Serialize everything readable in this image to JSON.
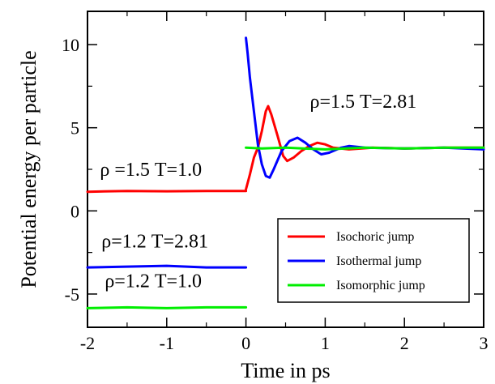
{
  "chart_data": {
    "type": "line",
    "title": "",
    "xlabel": "Time in ps",
    "ylabel": "Potential energy per particle",
    "xlim": [
      -2,
      3
    ],
    "ylim": [
      -7,
      12
    ],
    "x_ticks": [
      -2,
      -1,
      0,
      1,
      2,
      3
    ],
    "x_tick_labels": [
      "-2",
      "-1",
      "0",
      "1",
      "2",
      "3"
    ],
    "y_ticks": [
      -5,
      0,
      5,
      10
    ],
    "y_tick_labels": [
      "-5",
      "0",
      "5",
      "10"
    ],
    "grid": false,
    "legend_position": "bottom-right",
    "series": [
      {
        "name": "Isochoric jump",
        "color": "#ff0000",
        "segments": [
          [
            [
              -2,
              1.15
            ],
            [
              -1.5,
              1.2
            ],
            [
              -1.0,
              1.18
            ],
            [
              -0.5,
              1.2
            ],
            [
              0,
              1.2
            ]
          ],
          [
            [
              0,
              1.3
            ],
            [
              0.05,
              2.2
            ],
            [
              0.1,
              3.2
            ],
            [
              0.15,
              3.8
            ],
            [
              0.2,
              4.8
            ],
            [
              0.25,
              6.0
            ],
            [
              0.28,
              6.3
            ],
            [
              0.32,
              5.8
            ],
            [
              0.4,
              4.5
            ],
            [
              0.47,
              3.3
            ],
            [
              0.52,
              3.0
            ],
            [
              0.6,
              3.2
            ],
            [
              0.7,
              3.6
            ],
            [
              0.8,
              3.9
            ],
            [
              0.9,
              4.1
            ],
            [
              1.0,
              4.0
            ],
            [
              1.1,
              3.8
            ],
            [
              1.3,
              3.7
            ],
            [
              1.6,
              3.8
            ],
            [
              2.0,
              3.75
            ],
            [
              2.5,
              3.8
            ],
            [
              3.0,
              3.8
            ]
          ]
        ]
      },
      {
        "name": "Isothermal jump",
        "color": "#0000ff",
        "segments": [
          [
            [
              -2,
              -3.4
            ],
            [
              -1.5,
              -3.35
            ],
            [
              -1.0,
              -3.3
            ],
            [
              -0.5,
              -3.4
            ],
            [
              0,
              -3.4
            ]
          ],
          [
            [
              0,
              10.4
            ],
            [
              0.02,
              9.5
            ],
            [
              0.05,
              8.0
            ],
            [
              0.1,
              6.0
            ],
            [
              0.15,
              4.0
            ],
            [
              0.2,
              2.8
            ],
            [
              0.25,
              2.1
            ],
            [
              0.3,
              2.0
            ],
            [
              0.35,
              2.5
            ],
            [
              0.45,
              3.6
            ],
            [
              0.55,
              4.2
            ],
            [
              0.65,
              4.4
            ],
            [
              0.75,
              4.1
            ],
            [
              0.85,
              3.7
            ],
            [
              0.95,
              3.4
            ],
            [
              1.05,
              3.5
            ],
            [
              1.2,
              3.8
            ],
            [
              1.3,
              3.9
            ],
            [
              1.5,
              3.8
            ],
            [
              2.0,
              3.75
            ],
            [
              2.5,
              3.8
            ],
            [
              3.0,
              3.7
            ]
          ]
        ]
      },
      {
        "name": "Isomorphic jump",
        "color": "#00ee00",
        "segments": [
          [
            [
              -2,
              -5.85
            ],
            [
              -1.5,
              -5.8
            ],
            [
              -1.0,
              -5.85
            ],
            [
              -0.5,
              -5.8
            ],
            [
              0,
              -5.8
            ]
          ],
          [
            [
              0,
              3.8
            ],
            [
              0.2,
              3.75
            ],
            [
              0.5,
              3.8
            ],
            [
              1.0,
              3.7
            ],
            [
              1.5,
              3.8
            ],
            [
              2.0,
              3.75
            ],
            [
              2.5,
              3.8
            ],
            [
              3.0,
              3.8
            ]
          ]
        ]
      }
    ],
    "annotations": [
      {
        "text": "ρ=1.5 T=2.81",
        "x": 1.48,
        "y": 6.2
      },
      {
        "text": "ρ =1.5 T=1.0",
        "x": -1.2,
        "y": 2.1
      },
      {
        "text": "ρ=1.2 T=2.81",
        "x": -1.15,
        "y": -2.2
      },
      {
        "text": "ρ=1.2 T=1.0",
        "x": -1.17,
        "y": -4.6
      }
    ]
  }
}
